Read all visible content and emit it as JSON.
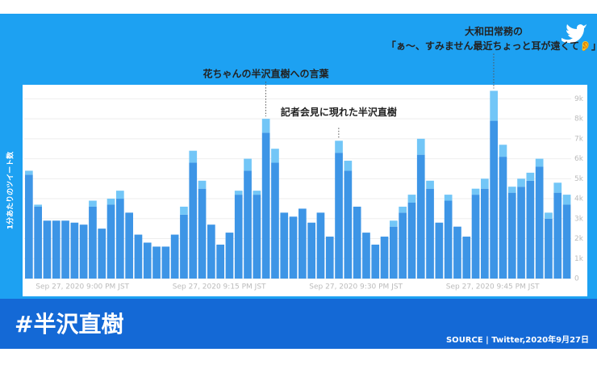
{
  "chart_data": {
    "type": "stacked_bar",
    "y_label": "1分あたりのツイート数",
    "categories": [
      null,
      "Sep 27, 2020 9:00 PM JST",
      null,
      null,
      null,
      null,
      null,
      null,
      null,
      null,
      null,
      null,
      null,
      null,
      null,
      null,
      "Sep 27, 2020 9:15 PM JST",
      null,
      null,
      null,
      null,
      null,
      null,
      null,
      null,
      null,
      null,
      null,
      null,
      null,
      null,
      "Sep 27, 2020 9:30 PM JST",
      null,
      null,
      null,
      null,
      null,
      null,
      null,
      null,
      null,
      null,
      null,
      null,
      null,
      null,
      "Sep 27, 2020 9:45 PM JST",
      null,
      null,
      null,
      null,
      null,
      null,
      null,
      null,
      null,
      null,
      null,
      null,
      null
    ],
    "series": [
      {
        "color": "#3d95e6",
        "values": [
          5200,
          3600,
          2900,
          2900,
          2900,
          2800,
          2700,
          3600,
          2500,
          3700,
          4000,
          3300,
          2200,
          1800,
          1600,
          1600,
          2200,
          3200,
          5800,
          4500,
          2700,
          1700,
          2300,
          4200,
          5400,
          4200,
          7300,
          5800,
          3300,
          3100,
          3500,
          2800,
          3300,
          2100,
          6300,
          5400,
          3600,
          2300,
          1700,
          2100,
          2600,
          3300,
          3800,
          6200,
          4500,
          2800,
          3900,
          2600,
          2100,
          4200,
          4500,
          7900,
          6100,
          4300,
          4600,
          4900,
          5600,
          3000,
          4300,
          3700
        ]
      },
      {
        "color": "#72c6f7",
        "values": [
          200,
          100,
          0,
          0,
          0,
          0,
          0,
          300,
          0,
          300,
          400,
          0,
          0,
          0,
          0,
          0,
          0,
          400,
          600,
          400,
          0,
          0,
          0,
          200,
          600,
          200,
          700,
          700,
          0,
          0,
          0,
          0,
          0,
          0,
          600,
          500,
          0,
          0,
          0,
          0,
          300,
          300,
          400,
          800,
          400,
          0,
          300,
          0,
          0,
          300,
          500,
          1500,
          600,
          300,
          400,
          400,
          400,
          300,
          500,
          500
        ]
      }
    ],
    "ylim": [
      0,
      9500
    ],
    "yticks": [
      0,
      {
        "value": 1000,
        "label": "1k"
      },
      {
        "value": 2000,
        "label": "2k"
      },
      {
        "value": 3000,
        "label": "3k"
      },
      {
        "value": 4000,
        "label": "4k"
      },
      {
        "value": 5000,
        "label": "5k"
      },
      {
        "value": 6000,
        "label": "6k"
      },
      {
        "value": 7000,
        "label": "7k"
      },
      {
        "value": 8000,
        "label": "8k"
      },
      {
        "value": 9000,
        "label": "9k"
      }
    ],
    "grid": true,
    "annotations": [
      {
        "lines": [
          "花ちゃんの半沢直樹への言葉"
        ],
        "bar": 26
      },
      {
        "lines": [
          "記者会見に現れた半沢直樹"
        ],
        "bar": 34
      },
      {
        "lines": [
          "大和田常務の",
          "「ぁ〜、すみません最近ちょっと耳が遠くて👂」"
        ],
        "bar": 51
      }
    ]
  },
  "footer": {
    "hashtag": "#半沢直樹",
    "source": "SOURCE | Twitter,2020年9月27日"
  }
}
